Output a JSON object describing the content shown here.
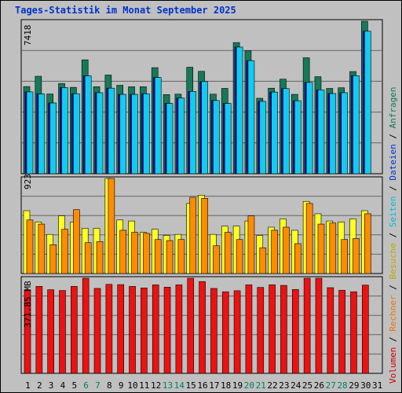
{
  "title": "Tages-Statistik im Monat September 2025",
  "panels": {
    "top_max_label": "7418",
    "middle_max_label": "923",
    "bottom_max_label": "371.85 MB"
  },
  "legend": [
    {
      "text": "Volumen",
      "color": "#cc0000"
    },
    {
      "text": " / ",
      "color": "#000000"
    },
    {
      "text": "Rechner",
      "color": "#ee7700"
    },
    {
      "text": " / ",
      "color": "#000000"
    },
    {
      "text": "Besuche",
      "color": "#bbaa00"
    },
    {
      "text": " / ",
      "color": "#000000"
    },
    {
      "text": "Seiten",
      "color": "#00bbdd"
    },
    {
      "text": " / ",
      "color": "#000000"
    },
    {
      "text": "Dateien",
      "color": "#0033cc"
    },
    {
      "text": " / ",
      "color": "#000000"
    },
    {
      "text": "Anfragen",
      "color": "#117755"
    }
  ],
  "colors": {
    "anfragen": "#157a5a",
    "dateien": "#0000c8",
    "seiten": "#11ccee",
    "besuche": "#ffff22",
    "rechner": "#ff8c00",
    "volumen": "#ee1111",
    "weekday_label": "#000000",
    "weekend_label": "#008060"
  },
  "chart_data": {
    "type": "bar",
    "title": "Tages-Statistik im Monat September 2025",
    "categories": [
      "1",
      "2",
      "3",
      "4",
      "5",
      "6",
      "7",
      "8",
      "9",
      "10",
      "11",
      "12",
      "13",
      "14",
      "15",
      "16",
      "17",
      "18",
      "19",
      "20",
      "21",
      "22",
      "23",
      "24",
      "25",
      "26",
      "27",
      "28",
      "29",
      "30",
      "31"
    ],
    "weekend_days": [
      "6",
      "7",
      "13",
      "14",
      "20",
      "21",
      "27",
      "28"
    ],
    "panels": [
      {
        "name": "top",
        "ylim": [
          0,
          7418
        ],
        "max_label": "7418",
        "series": [
          {
            "name": "Anfragen",
            "values": [
              4240,
              4740,
              3880,
              4390,
              4200,
              5540,
              4230,
              4800,
              4300,
              4230,
              4230,
              5160,
              3850,
              3870,
              5180,
              4980,
              3870,
              4150,
              6380,
              5990,
              3670,
              4160,
              4600,
              3860,
              5640,
              4720,
              4150,
              4180,
              4970,
              7418,
              null
            ]
          },
          {
            "name": "Dateien",
            "values": [
              3980,
              3880,
              3440,
              4190,
              3890,
              4760,
              3940,
              4160,
              3860,
              3860,
              3890,
              4680,
              3420,
              3680,
              4000,
              4480,
              3560,
              3420,
              6160,
              5500,
              3520,
              3970,
              4140,
              3550,
              4440,
              4080,
              3900,
              3940,
              4770,
              6930,
              null
            ]
          },
          {
            "name": "Seiten",
            "values": [
              3980,
              3880,
              3440,
              4190,
              3890,
              4760,
              3940,
              4160,
              3860,
              3860,
              3890,
              4680,
              3420,
              3680,
              4000,
              4480,
              3560,
              3420,
              6160,
              5500,
              3520,
              3970,
              4140,
              3550,
              4440,
              4080,
              3900,
              3940,
              4770,
              6930,
              null
            ]
          }
        ]
      },
      {
        "name": "middle",
        "ylim": [
          0,
          923
        ],
        "max_label": "923",
        "series": [
          {
            "name": "Besuche",
            "values": [
              610,
              500,
              380,
              560,
              500,
              440,
              440,
              923,
              520,
              510,
              400,
              430,
              370,
              380,
              680,
              760,
              380,
              460,
              460,
              510,
              370,
              450,
              530,
              420,
              700,
              580,
              510,
              500,
              530,
              610,
              null
            ]
          },
          {
            "name": "Rechner",
            "values": [
              520,
              480,
              280,
              430,
              620,
              300,
              310,
              923,
              420,
              400,
              390,
              330,
              320,
              330,
              740,
              730,
              270,
              400,
              330,
              560,
              250,
              420,
              450,
              290,
              680,
              480,
              490,
              330,
              340,
              580,
              null
            ]
          }
        ]
      },
      {
        "name": "bottom",
        "ylim": [
          0,
          371.85
        ],
        "max_label": "371.85 MB",
        "ylabel": "MB",
        "series": [
          {
            "name": "Volumen",
            "values": [
              327,
              340,
              327,
              324,
              340,
              371.85,
              332,
              348,
              347,
              340,
              334,
              346,
              337,
              346,
              371.85,
              359,
              332,
              319,
              323,
              346,
              336,
              346,
              344,
              328,
              371.85,
              371.85,
              335,
              325,
              319,
              345,
              null
            ]
          }
        ]
      }
    ]
  }
}
